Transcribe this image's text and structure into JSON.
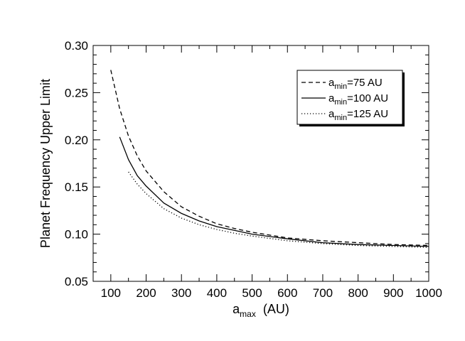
{
  "chart_data": {
    "type": "line",
    "title": "",
    "xlabel": {
      "base": "a",
      "sub": "max",
      "rest": "(AU)"
    },
    "ylabel": "Planet Frequency Upper Limit",
    "xlim": [
      50,
      1000
    ],
    "ylim": [
      0.05,
      0.3
    ],
    "xticks": [
      100,
      200,
      300,
      400,
      500,
      600,
      700,
      800,
      900,
      1000
    ],
    "yticks": [
      0.05,
      0.1,
      0.15,
      0.2,
      0.25,
      0.3
    ],
    "ytick_labels": [
      "0.05",
      "0.10",
      "0.15",
      "0.20",
      "0.25",
      "0.30"
    ],
    "legend_position": "top-right",
    "grid": false,
    "series": [
      {
        "legend": {
          "base": "a",
          "sub": "min",
          "rest": "=75 AU"
        },
        "style": "dashed",
        "color": "#000000",
        "x": [
          100,
          125,
          150,
          175,
          200,
          250,
          300,
          350,
          400,
          450,
          500,
          600,
          700,
          800,
          900,
          1000
        ],
        "y": [
          0.274,
          0.233,
          0.204,
          0.183,
          0.167,
          0.145,
          0.129,
          0.119,
          0.111,
          0.106,
          0.102,
          0.096,
          0.093,
          0.091,
          0.089,
          0.088
        ]
      },
      {
        "legend": {
          "base": "a",
          "sub": "min",
          "rest": "=100 AU"
        },
        "style": "solid",
        "color": "#000000",
        "x": [
          125,
          150,
          175,
          200,
          250,
          300,
          350,
          400,
          450,
          500,
          600,
          700,
          800,
          900,
          1000
        ],
        "y": [
          0.203,
          0.179,
          0.162,
          0.151,
          0.133,
          0.122,
          0.114,
          0.108,
          0.104,
          0.1,
          0.095,
          0.091,
          0.089,
          0.088,
          0.087
        ]
      },
      {
        "legend": {
          "base": "a",
          "sub": "min",
          "rest": "=125 AU"
        },
        "style": "dotted",
        "color": "#000000",
        "x": [
          150,
          175,
          200,
          250,
          300,
          350,
          400,
          450,
          500,
          600,
          700,
          800,
          900,
          1000
        ],
        "y": [
          0.166,
          0.153,
          0.143,
          0.127,
          0.117,
          0.11,
          0.105,
          0.101,
          0.098,
          0.093,
          0.09,
          0.088,
          0.087,
          0.086
        ]
      }
    ]
  }
}
